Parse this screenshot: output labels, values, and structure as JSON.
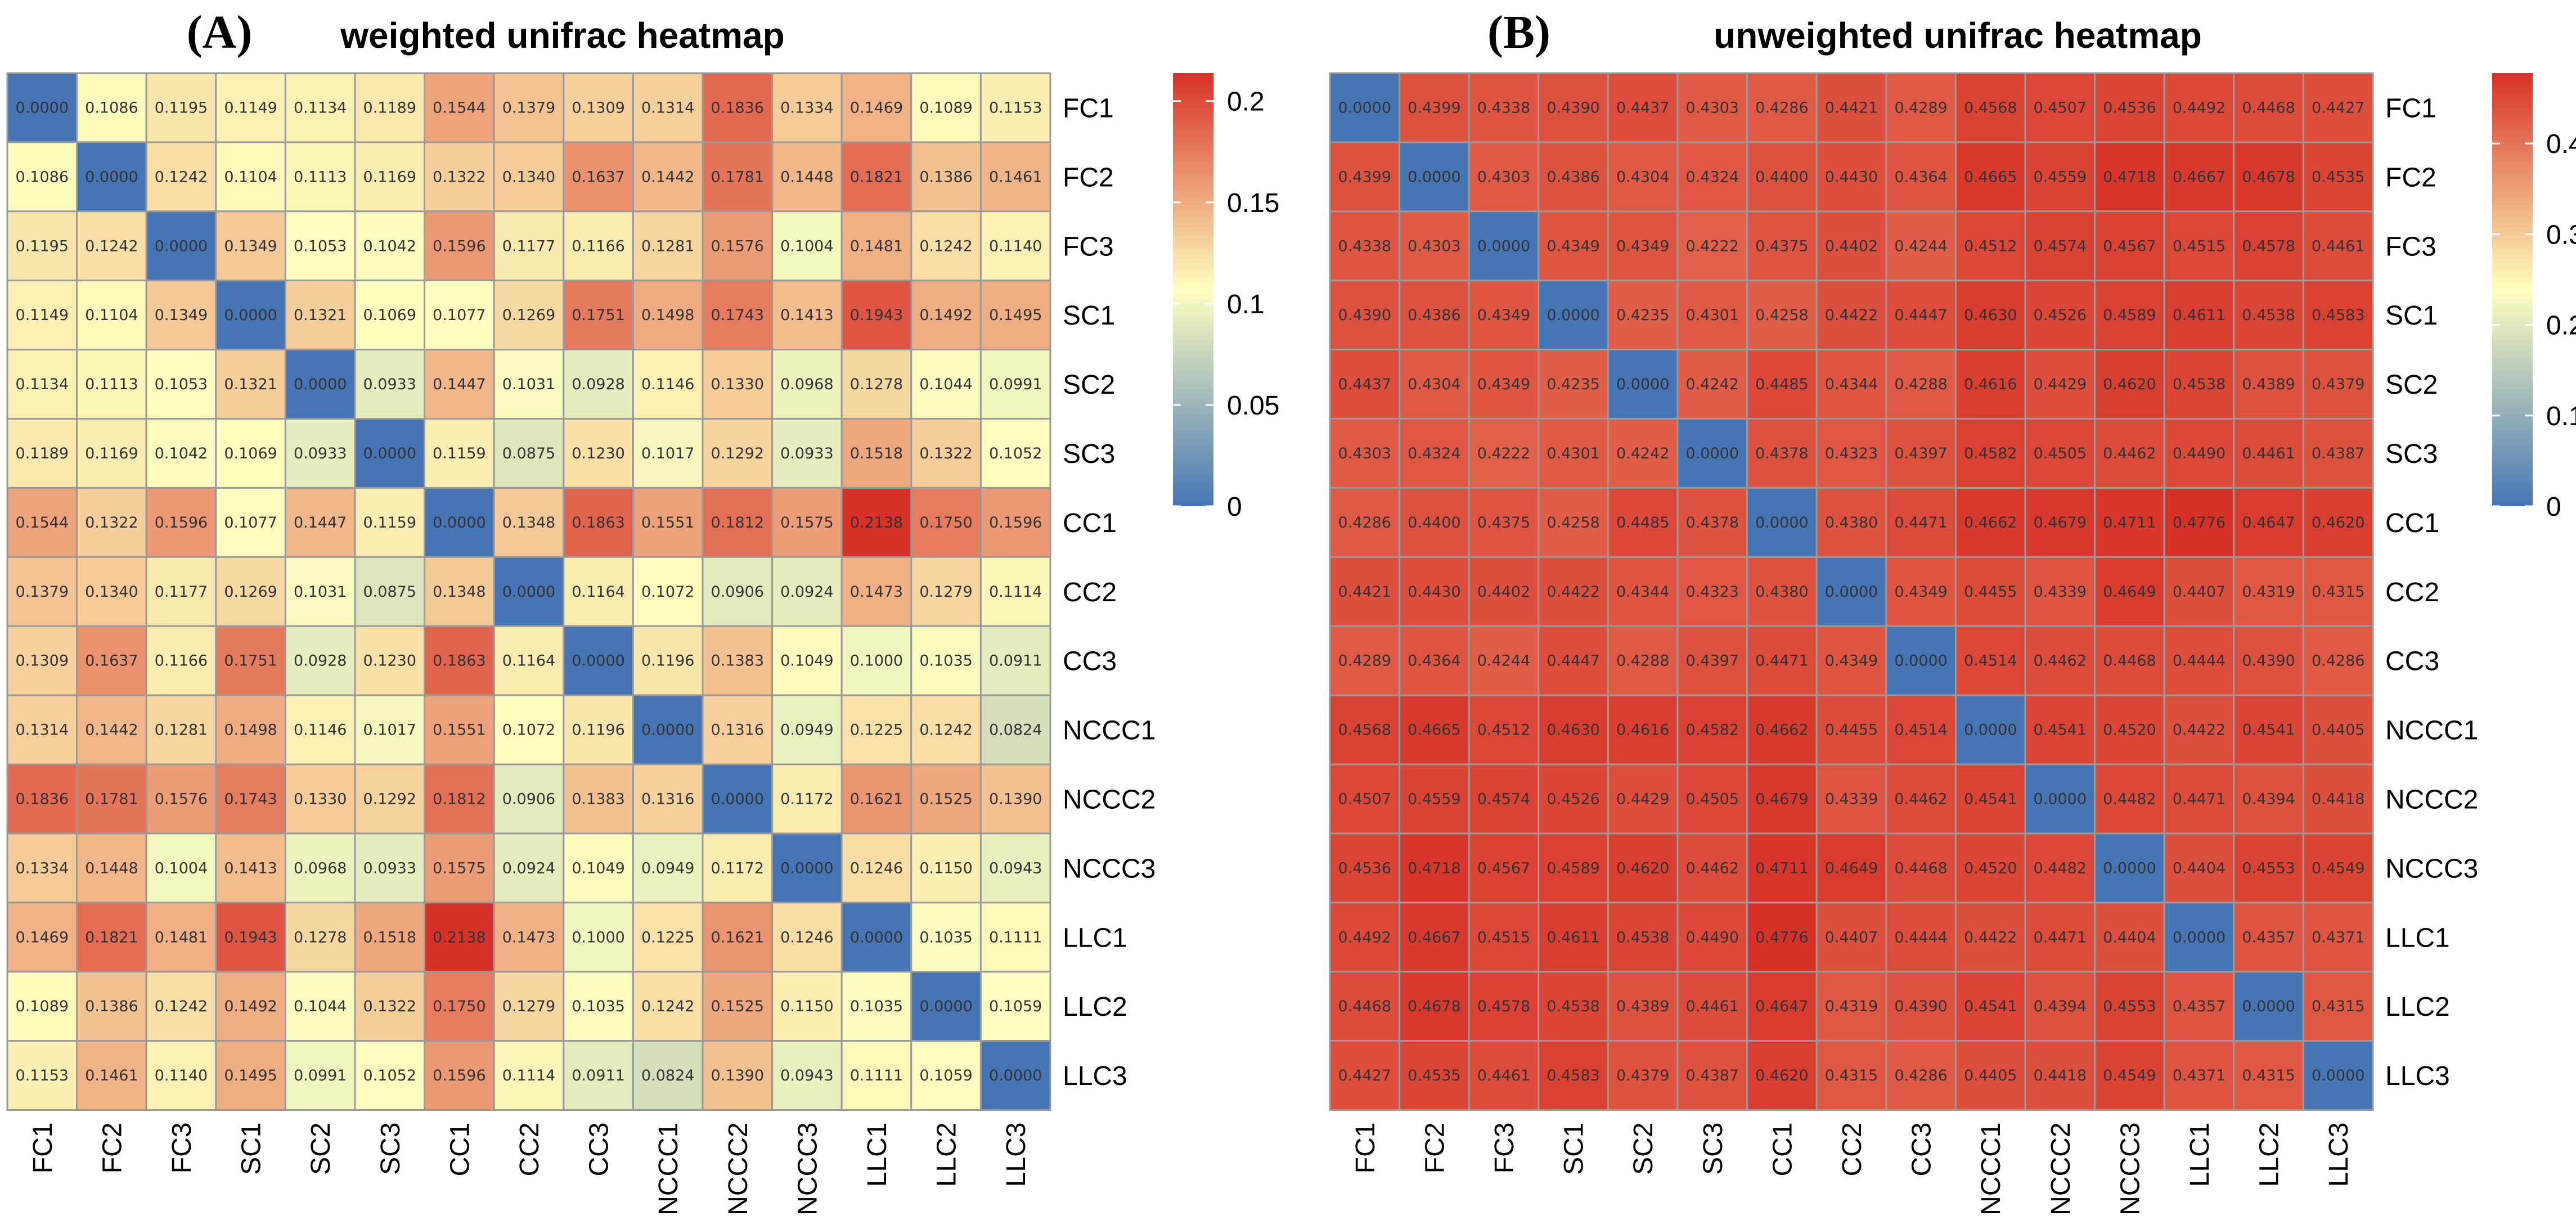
{
  "chart_data": [
    {
      "type": "heatmap",
      "panel_label": "(A)",
      "title": "weighted unifrac heatmap",
      "rows": [
        "FC1",
        "FC2",
        "FC3",
        "SC1",
        "SC2",
        "SC3",
        "CC1",
        "CC2",
        "CC3",
        "NCCC1",
        "NCCC2",
        "NCCC3",
        "LLC1",
        "LLC2",
        "LLC3"
      ],
      "columns": [
        "FC1",
        "FC2",
        "FC3",
        "SC1",
        "SC2",
        "SC3",
        "CC1",
        "CC2",
        "CC3",
        "NCCC1",
        "NCCC2",
        "NCCC3",
        "LLC1",
        "LLC2",
        "LLC3"
      ],
      "values": [
        [
          "0.0000",
          "0.1086",
          "0.1195",
          "0.1149",
          "0.1134",
          "0.1189",
          "0.1544",
          "0.1379",
          "0.1309",
          "0.1314",
          "0.1836",
          "0.1334",
          "0.1469",
          "0.1089",
          "0.1153"
        ],
        [
          "0.1086",
          "0.0000",
          "0.1242",
          "0.1104",
          "0.1113",
          "0.1169",
          "0.1322",
          "0.1340",
          "0.1637",
          "0.1442",
          "0.1781",
          "0.1448",
          "0.1821",
          "0.1386",
          "0.1461"
        ],
        [
          "0.1195",
          "0.1242",
          "0.0000",
          "0.1349",
          "0.1053",
          "0.1042",
          "0.1596",
          "0.1177",
          "0.1166",
          "0.1281",
          "0.1576",
          "0.1004",
          "0.1481",
          "0.1242",
          "0.1140"
        ],
        [
          "0.1149",
          "0.1104",
          "0.1349",
          "0.0000",
          "0.1321",
          "0.1069",
          "0.1077",
          "0.1269",
          "0.1751",
          "0.1498",
          "0.1743",
          "0.1413",
          "0.1943",
          "0.1492",
          "0.1495"
        ],
        [
          "0.1134",
          "0.1113",
          "0.1053",
          "0.1321",
          "0.0000",
          "0.0933",
          "0.1447",
          "0.1031",
          "0.0928",
          "0.1146",
          "0.1330",
          "0.0968",
          "0.1278",
          "0.1044",
          "0.0991"
        ],
        [
          "0.1189",
          "0.1169",
          "0.1042",
          "0.1069",
          "0.0933",
          "0.0000",
          "0.1159",
          "0.0875",
          "0.1230",
          "0.1017",
          "0.1292",
          "0.0933",
          "0.1518",
          "0.1322",
          "0.1052"
        ],
        [
          "0.1544",
          "0.1322",
          "0.1596",
          "0.1077",
          "0.1447",
          "0.1159",
          "0.0000",
          "0.1348",
          "0.1863",
          "0.1551",
          "0.1812",
          "0.1575",
          "0.2138",
          "0.1750",
          "0.1596"
        ],
        [
          "0.1379",
          "0.1340",
          "0.1177",
          "0.1269",
          "0.1031",
          "0.0875",
          "0.1348",
          "0.0000",
          "0.1164",
          "0.1072",
          "0.0906",
          "0.0924",
          "0.1473",
          "0.1279",
          "0.1114"
        ],
        [
          "0.1309",
          "0.1637",
          "0.1166",
          "0.1751",
          "0.0928",
          "0.1230",
          "0.1863",
          "0.1164",
          "0.0000",
          "0.1196",
          "0.1383",
          "0.1049",
          "0.1000",
          "0.1035",
          "0.0911"
        ],
        [
          "0.1314",
          "0.1442",
          "0.1281",
          "0.1498",
          "0.1146",
          "0.1017",
          "0.1551",
          "0.1072",
          "0.1196",
          "0.0000",
          "0.1316",
          "0.0949",
          "0.1225",
          "0.1242",
          "0.0824"
        ],
        [
          "0.1836",
          "0.1781",
          "0.1576",
          "0.1743",
          "0.1330",
          "0.1292",
          "0.1812",
          "0.0906",
          "0.1383",
          "0.1316",
          "0.0000",
          "0.1172",
          "0.1621",
          "0.1525",
          "0.1390"
        ],
        [
          "0.1334",
          "0.1448",
          "0.1004",
          "0.1413",
          "0.0968",
          "0.0933",
          "0.1575",
          "0.0924",
          "0.1049",
          "0.0949",
          "0.1172",
          "0.0000",
          "0.1246",
          "0.1150",
          "0.0943"
        ],
        [
          "0.1469",
          "0.1821",
          "0.1481",
          "0.1943",
          "0.1278",
          "0.1518",
          "0.2138",
          "0.1473",
          "0.1000",
          "0.1225",
          "0.1621",
          "0.1246",
          "0.0000",
          "0.1035",
          "0.1111"
        ],
        [
          "0.1089",
          "0.1386",
          "0.1242",
          "0.1492",
          "0.1044",
          "0.1322",
          "0.1750",
          "0.1279",
          "0.1035",
          "0.1242",
          "0.1525",
          "0.1150",
          "0.1035",
          "0.0000",
          "0.1059"
        ],
        [
          "0.1153",
          "0.1461",
          "0.1140",
          "0.1495",
          "0.0991",
          "0.1052",
          "0.1596",
          "0.1114",
          "0.0911",
          "0.0824",
          "0.1390",
          "0.0943",
          "0.1111",
          "0.1059",
          "0.0000"
        ]
      ],
      "color_scale": {
        "min": 0,
        "max": 0.2138,
        "low": "#4575b4",
        "mid": "#ffffbf",
        "high": "#d73027"
      },
      "legend_ticks": [
        {
          "value": 0,
          "label": "0"
        },
        {
          "value": 0.05,
          "label": "0.05"
        },
        {
          "value": 0.1,
          "label": "0.1"
        },
        {
          "value": 0.15,
          "label": "0.15"
        },
        {
          "value": 0.2,
          "label": "0.2"
        }
      ],
      "legend_position": "right"
    },
    {
      "type": "heatmap",
      "panel_label": "(B)",
      "title": "unweighted unifrac heatmap",
      "rows": [
        "FC1",
        "FC2",
        "FC3",
        "SC1",
        "SC2",
        "SC3",
        "CC1",
        "CC2",
        "CC3",
        "NCCC1",
        "NCCC2",
        "NCCC3",
        "LLC1",
        "LLC2",
        "LLC3"
      ],
      "columns": [
        "FC1",
        "FC2",
        "FC3",
        "SC1",
        "SC2",
        "SC3",
        "CC1",
        "CC2",
        "CC3",
        "NCCC1",
        "NCCC2",
        "NCCC3",
        "LLC1",
        "LLC2",
        "LLC3"
      ],
      "values": [
        [
          "0.0000",
          "0.4399",
          "0.4338",
          "0.4390",
          "0.4437",
          "0.4303",
          "0.4286",
          "0.4421",
          "0.4289",
          "0.4568",
          "0.4507",
          "0.4536",
          "0.4492",
          "0.4468",
          "0.4427"
        ],
        [
          "0.4399",
          "0.0000",
          "0.4303",
          "0.4386",
          "0.4304",
          "0.4324",
          "0.4400",
          "0.4430",
          "0.4364",
          "0.4665",
          "0.4559",
          "0.4718",
          "0.4667",
          "0.4678",
          "0.4535"
        ],
        [
          "0.4338",
          "0.4303",
          "0.0000",
          "0.4349",
          "0.4349",
          "0.4222",
          "0.4375",
          "0.4402",
          "0.4244",
          "0.4512",
          "0.4574",
          "0.4567",
          "0.4515",
          "0.4578",
          "0.4461"
        ],
        [
          "0.4390",
          "0.4386",
          "0.4349",
          "0.0000",
          "0.4235",
          "0.4301",
          "0.4258",
          "0.4422",
          "0.4447",
          "0.4630",
          "0.4526",
          "0.4589",
          "0.4611",
          "0.4538",
          "0.4583"
        ],
        [
          "0.4437",
          "0.4304",
          "0.4349",
          "0.4235",
          "0.0000",
          "0.4242",
          "0.4485",
          "0.4344",
          "0.4288",
          "0.4616",
          "0.4429",
          "0.4620",
          "0.4538",
          "0.4389",
          "0.4379"
        ],
        [
          "0.4303",
          "0.4324",
          "0.4222",
          "0.4301",
          "0.4242",
          "0.0000",
          "0.4378",
          "0.4323",
          "0.4397",
          "0.4582",
          "0.4505",
          "0.4462",
          "0.4490",
          "0.4461",
          "0.4387"
        ],
        [
          "0.4286",
          "0.4400",
          "0.4375",
          "0.4258",
          "0.4485",
          "0.4378",
          "0.0000",
          "0.4380",
          "0.4471",
          "0.4662",
          "0.4679",
          "0.4711",
          "0.4776",
          "0.4647",
          "0.4620"
        ],
        [
          "0.4421",
          "0.4430",
          "0.4402",
          "0.4422",
          "0.4344",
          "0.4323",
          "0.4380",
          "0.0000",
          "0.4349",
          "0.4455",
          "0.4339",
          "0.4649",
          "0.4407",
          "0.4319",
          "0.4315"
        ],
        [
          "0.4289",
          "0.4364",
          "0.4244",
          "0.4447",
          "0.4288",
          "0.4397",
          "0.4471",
          "0.4349",
          "0.0000",
          "0.4514",
          "0.4462",
          "0.4468",
          "0.4444",
          "0.4390",
          "0.4286"
        ],
        [
          "0.4568",
          "0.4665",
          "0.4512",
          "0.4630",
          "0.4616",
          "0.4582",
          "0.4662",
          "0.4455",
          "0.4514",
          "0.0000",
          "0.4541",
          "0.4520",
          "0.4422",
          "0.4541",
          "0.4405"
        ],
        [
          "0.4507",
          "0.4559",
          "0.4574",
          "0.4526",
          "0.4429",
          "0.4505",
          "0.4679",
          "0.4339",
          "0.4462",
          "0.4541",
          "0.0000",
          "0.4482",
          "0.4471",
          "0.4394",
          "0.4418"
        ],
        [
          "0.4536",
          "0.4718",
          "0.4567",
          "0.4589",
          "0.4620",
          "0.4462",
          "0.4711",
          "0.4649",
          "0.4468",
          "0.4520",
          "0.4482",
          "0.0000",
          "0.4404",
          "0.4553",
          "0.4549"
        ],
        [
          "0.4492",
          "0.4667",
          "0.4515",
          "0.4611",
          "0.4538",
          "0.4490",
          "0.4776",
          "0.4407",
          "0.4444",
          "0.4422",
          "0.4471",
          "0.4404",
          "0.0000",
          "0.4357",
          "0.4371"
        ],
        [
          "0.4468",
          "0.4678",
          "0.4578",
          "0.4538",
          "0.4389",
          "0.4461",
          "0.4647",
          "0.4319",
          "0.4390",
          "0.4541",
          "0.4394",
          "0.4553",
          "0.4357",
          "0.0000",
          "0.4315"
        ],
        [
          "0.4427",
          "0.4535",
          "0.4461",
          "0.4583",
          "0.4379",
          "0.4387",
          "0.4620",
          "0.4315",
          "0.4286",
          "0.4405",
          "0.4418",
          "0.4549",
          "0.4371",
          "0.4315",
          "0.0000"
        ]
      ],
      "color_scale": {
        "min": 0,
        "max": 0.4776,
        "low": "#4575b4",
        "mid": "#ffffbf",
        "high": "#d73027"
      },
      "legend_ticks": [
        {
          "value": 0,
          "label": "0"
        },
        {
          "value": 0.1,
          "label": "0.1"
        },
        {
          "value": 0.2,
          "label": "0.2"
        },
        {
          "value": 0.3,
          "label": "0.3"
        },
        {
          "value": 0.4,
          "label": "0.4"
        }
      ],
      "legend_position": "right"
    }
  ]
}
